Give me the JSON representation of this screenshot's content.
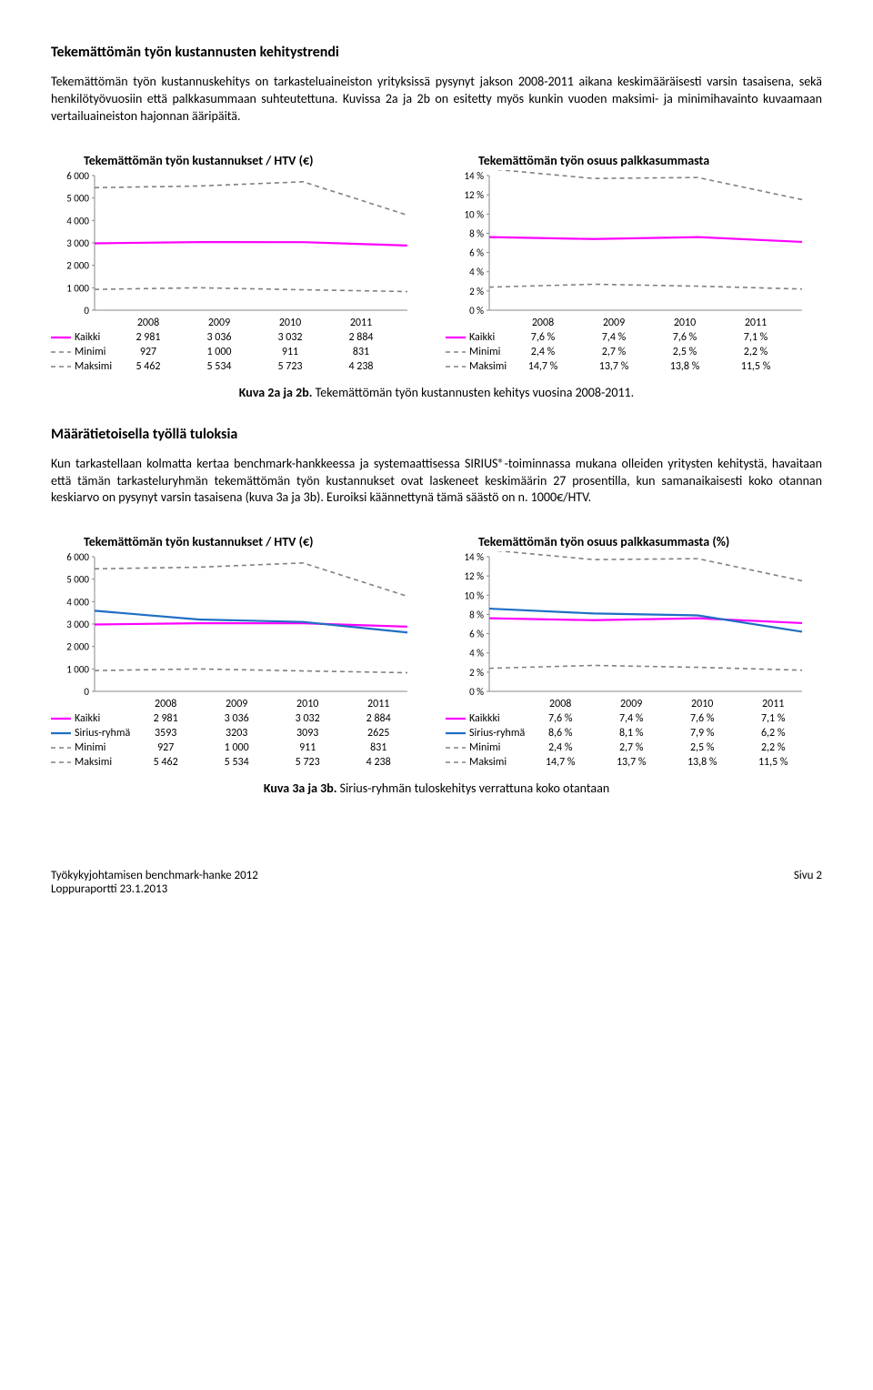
{
  "heading1": "Tekemättömän työn kustannusten kehitystrendi",
  "para1": "Tekemättömän työn kustannuskehitys on tarkasteluaineiston yrityksissä pysynyt jakson 2008-2011 aikana keskimääräisesti varsin tasaisena, sekä henkilötyövuosiin että palkkasummaan suhteutettuna. Kuvissa 2a ja 2b on esitetty myös kunkin vuoden maksimi- ja minimihavainto kuvaamaan vertailuaineiston hajonnan ääripäitä.",
  "heading2": "Määrätietoisella työllä tuloksia",
  "para2": "Kun tarkastellaan kolmatta kertaa benchmark-hankkeessa ja systemaattisessa SIRIUS®-toiminnassa mukana olleiden yritysten kehitystä, havaitaan että tämän tarkasteluryhmän tekemättömän työn kustannukset ovat laskeneet keskimäärin 27 prosentilla, kun samanaikaisesti koko otannan keskiarvo on pysynyt varsin tasaisena (kuva 3a ja 3b). Euroiksi käännettynä tämä säästö on n. 1000€/HTV.",
  "caption2": {
    "bold": "Kuva 2a ja 2b.",
    "rest": " Tekemättömän työn kustannusten kehitys vuosina 2008-2011."
  },
  "caption3": {
    "bold": "Kuva 3a ja 3b.",
    "rest": " Sirius-ryhmän tuloskehitys verrattuna koko otantaan"
  },
  "footer_left": "Työkykyjohtamisen benchmark-hanke 2012",
  "footer_sub": "Loppuraportti 23.1.2013",
  "footer_right": "Sivu 2",
  "colors": {
    "kaikki": "#ff00ff",
    "sirius": "#1f6fc4",
    "minimi": "#808080",
    "maksimi": "#808080",
    "axis": "#888888",
    "grid": "#d0d0d0",
    "text": "#000000"
  },
  "years": [
    "2008",
    "2009",
    "2010",
    "2011"
  ],
  "chart2a": {
    "title": "Tekemättömän työn kustannukset / HTV (€)",
    "ymin": 0,
    "ymax": 6000,
    "ystep": 1000,
    "series": {
      "Kaikki": {
        "vals": [
          2981,
          3036,
          3032,
          2884
        ],
        "labels": [
          "2 981",
          "3 036",
          "3 032",
          "2 884"
        ],
        "color": "#ff00ff",
        "dash": "",
        "w": 2.2
      },
      "Minimi": {
        "vals": [
          927,
          1000,
          911,
          831
        ],
        "labels": [
          "927",
          "1 000",
          "911",
          "831"
        ],
        "color": "#808080",
        "dash": "5,4",
        "w": 1.6
      },
      "Maksimi": {
        "vals": [
          5462,
          5534,
          5723,
          4238
        ],
        "labels": [
          "5 462",
          "5 534",
          "5 723",
          "4 238"
        ],
        "color": "#808080",
        "dash": "5,4",
        "w": 1.6
      }
    }
  },
  "chart2b": {
    "title": "Tekemättömän työn osuus palkkasummasta",
    "ymin": 0,
    "ymax": 14,
    "ystep": 2,
    "suffix": " %",
    "series": {
      "Kaikki": {
        "vals": [
          7.6,
          7.4,
          7.6,
          7.1
        ],
        "labels": [
          "7,6 %",
          "7,4 %",
          "7,6 %",
          "7,1 %"
        ],
        "color": "#ff00ff",
        "dash": "",
        "w": 2.2
      },
      "Minimi": {
        "vals": [
          2.4,
          2.7,
          2.5,
          2.2
        ],
        "labels": [
          "2,4 %",
          "2,7 %",
          "2,5 %",
          "2,2 %"
        ],
        "color": "#808080",
        "dash": "5,4",
        "w": 1.6
      },
      "Maksimi": {
        "vals": [
          14.7,
          13.7,
          13.8,
          11.5
        ],
        "labels": [
          "14,7 %",
          "13,7 %",
          "13,8 %",
          "11,5 %"
        ],
        "color": "#808080",
        "dash": "5,4",
        "w": 1.6
      }
    }
  },
  "chart3a": {
    "title": "Tekemättömän työn kustannukset / HTV (€)",
    "ymin": 0,
    "ymax": 6000,
    "ystep": 1000,
    "series": {
      "Kaikki": {
        "vals": [
          2981,
          3036,
          3032,
          2884
        ],
        "labels": [
          "2 981",
          "3 036",
          "3 032",
          "2 884"
        ],
        "color": "#ff00ff",
        "dash": "",
        "w": 2.2
      },
      "Sirius-ryhmä": {
        "vals": [
          3593,
          3203,
          3093,
          2625
        ],
        "labels": [
          "3593",
          "3203",
          "3093",
          "2625"
        ],
        "color": "#1f6fc4",
        "dash": "",
        "w": 2.2
      },
      "Minimi": {
        "vals": [
          927,
          1000,
          911,
          831
        ],
        "labels": [
          "927",
          "1 000",
          "911",
          "831"
        ],
        "color": "#808080",
        "dash": "5,4",
        "w": 1.6
      },
      "Maksimi": {
        "vals": [
          5462,
          5534,
          5723,
          4238
        ],
        "labels": [
          "5 462",
          "5 534",
          "5 723",
          "4 238"
        ],
        "color": "#808080",
        "dash": "5,4",
        "w": 1.6
      }
    }
  },
  "chart3b": {
    "title": "Tekemättömän työn osuus palkkasummasta (%)",
    "ymin": 0,
    "ymax": 14,
    "ystep": 2,
    "suffix": " %",
    "series": {
      "Kaikkki": {
        "vals": [
          7.6,
          7.4,
          7.6,
          7.1
        ],
        "labels": [
          "7,6 %",
          "7,4 %",
          "7,6 %",
          "7,1 %"
        ],
        "color": "#ff00ff",
        "dash": "",
        "w": 2.2
      },
      "Sirius-ryhmä": {
        "vals": [
          8.6,
          8.1,
          7.9,
          6.2
        ],
        "labels": [
          "8,6 %",
          "8,1 %",
          "7,9 %",
          "6,2 %"
        ],
        "color": "#1f6fc4",
        "dash": "",
        "w": 2.2
      },
      "Minimi": {
        "vals": [
          2.4,
          2.7,
          2.5,
          2.2
        ],
        "labels": [
          "2,4 %",
          "2,7 %",
          "2,5 %",
          "2,2 %"
        ],
        "color": "#808080",
        "dash": "5,4",
        "w": 1.6
      },
      "Maksimi": {
        "vals": [
          14.7,
          13.7,
          13.8,
          11.5
        ],
        "labels": [
          "14,7 %",
          "13,7 %",
          "13,8 %",
          "11,5 %"
        ],
        "color": "#808080",
        "dash": "5,4",
        "w": 1.6
      }
    }
  }
}
